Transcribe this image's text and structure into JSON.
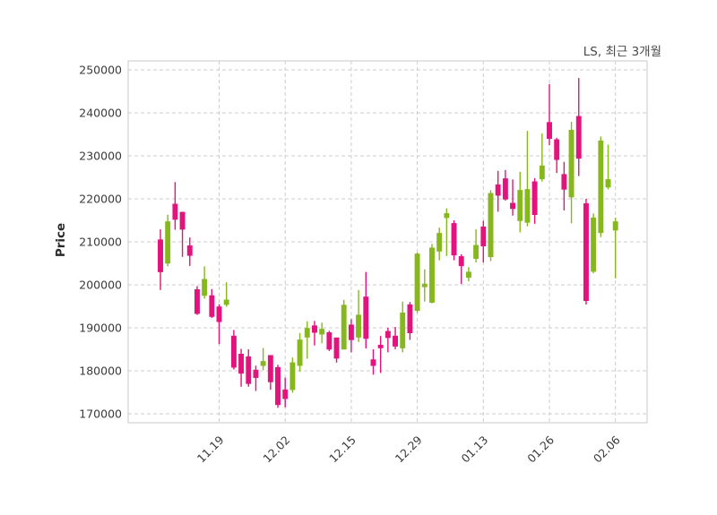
{
  "title": "LS, 최근 3개월",
  "ylabel": "Price",
  "chart_data": {
    "type": "candlestick",
    "title": "LS, 최근 3개월",
    "ylabel": "Price",
    "xlabel": "",
    "grid": true,
    "legend": "none",
    "x_tick_labels": [
      "11.19",
      "12.02",
      "12.15",
      "12.29",
      "01.13",
      "01.26",
      "02.06"
    ],
    "x_tick_indices": [
      8,
      17,
      26,
      35,
      44,
      53,
      62
    ],
    "y_ticks": [
      170000,
      180000,
      190000,
      200000,
      210000,
      220000,
      230000,
      240000,
      250000
    ],
    "ylim": [
      167900,
      252100
    ],
    "colors": {
      "up": "#e3137e",
      "down": "#87b71e",
      "grid": "#cccccc",
      "spine": "#d2d2d2",
      "tick_text": "#3a3a3a",
      "title_text": "#4a4a4a"
    },
    "candle_format": [
      "open",
      "high",
      "low",
      "close"
    ],
    "candles": [
      [
        203000,
        212900,
        198800,
        210500
      ],
      [
        214700,
        216300,
        204300,
        205000
      ],
      [
        215200,
        223900,
        212800,
        218800
      ],
      [
        212900,
        217000,
        206500,
        216900
      ],
      [
        206800,
        211000,
        204400,
        209100
      ],
      [
        193300,
        199700,
        193000,
        198900
      ],
      [
        201300,
        204300,
        196800,
        197500
      ],
      [
        192600,
        199000,
        192300,
        197500
      ],
      [
        191400,
        195500,
        186200,
        194900
      ],
      [
        196500,
        200600,
        194900,
        195400
      ],
      [
        180800,
        189500,
        180300,
        188100
      ],
      [
        179400,
        185100,
        176300,
        183900
      ],
      [
        177000,
        185000,
        176300,
        183300
      ],
      [
        178400,
        181200,
        175300,
        180200
      ],
      [
        182200,
        185300,
        180200,
        181200
      ],
      [
        177400,
        183600,
        175600,
        183600
      ],
      [
        172100,
        181400,
        171400,
        180800
      ],
      [
        173500,
        178400,
        171500,
        175600
      ],
      [
        181900,
        183100,
        174900,
        175600
      ],
      [
        187200,
        188800,
        179800,
        181200
      ],
      [
        189900,
        191500,
        182800,
        187800
      ],
      [
        188900,
        191600,
        185900,
        190500
      ],
      [
        189700,
        191200,
        186400,
        188500
      ],
      [
        185000,
        189300,
        184600,
        188900
      ],
      [
        182900,
        187700,
        181900,
        187700
      ],
      [
        195300,
        196500,
        185000,
        185000
      ],
      [
        187200,
        192000,
        184300,
        190700
      ],
      [
        193000,
        198800,
        186700,
        187800
      ],
      [
        187500,
        203000,
        185200,
        197200
      ],
      [
        181200,
        185000,
        179100,
        182600
      ],
      [
        185300,
        188100,
        179500,
        186000
      ],
      [
        187700,
        190000,
        184300,
        189200
      ],
      [
        185700,
        190200,
        185000,
        188100
      ],
      [
        193500,
        196100,
        184300,
        185300
      ],
      [
        188800,
        196000,
        187200,
        195400
      ],
      [
        207200,
        207500,
        193500,
        194000
      ],
      [
        200200,
        203600,
        196100,
        199500
      ],
      [
        208600,
        209500,
        195700,
        195900
      ],
      [
        212000,
        213300,
        205700,
        207800
      ],
      [
        216600,
        217800,
        206700,
        215600
      ],
      [
        206900,
        215000,
        205700,
        214300
      ],
      [
        204400,
        207100,
        200200,
        206600
      ],
      [
        203000,
        204100,
        200800,
        201700
      ],
      [
        209200,
        212900,
        205200,
        206100
      ],
      [
        209000,
        214900,
        205200,
        213500
      ],
      [
        221300,
        222000,
        205500,
        206500
      ],
      [
        220800,
        226500,
        217000,
        223300
      ],
      [
        219900,
        226700,
        219600,
        224700
      ],
      [
        217700,
        224500,
        216100,
        219000
      ],
      [
        222000,
        226300,
        212200,
        214900
      ],
      [
        222200,
        235800,
        213600,
        214500
      ],
      [
        216300,
        224800,
        214200,
        224000
      ],
      [
        227700,
        235200,
        224000,
        224600
      ],
      [
        234000,
        246700,
        232500,
        237800
      ],
      [
        229100,
        234200,
        226000,
        233800
      ],
      [
        222200,
        228600,
        217300,
        225700
      ],
      [
        236000,
        237900,
        214300,
        220400
      ],
      [
        229400,
        248100,
        225300,
        239200
      ],
      [
        196300,
        220000,
        195400,
        218900
      ],
      [
        215600,
        216600,
        202700,
        203100
      ],
      [
        233500,
        234500,
        211100,
        212100
      ],
      [
        224500,
        232600,
        222200,
        222700
      ],
      [
        214700,
        215600,
        201500,
        212700
      ]
    ]
  }
}
